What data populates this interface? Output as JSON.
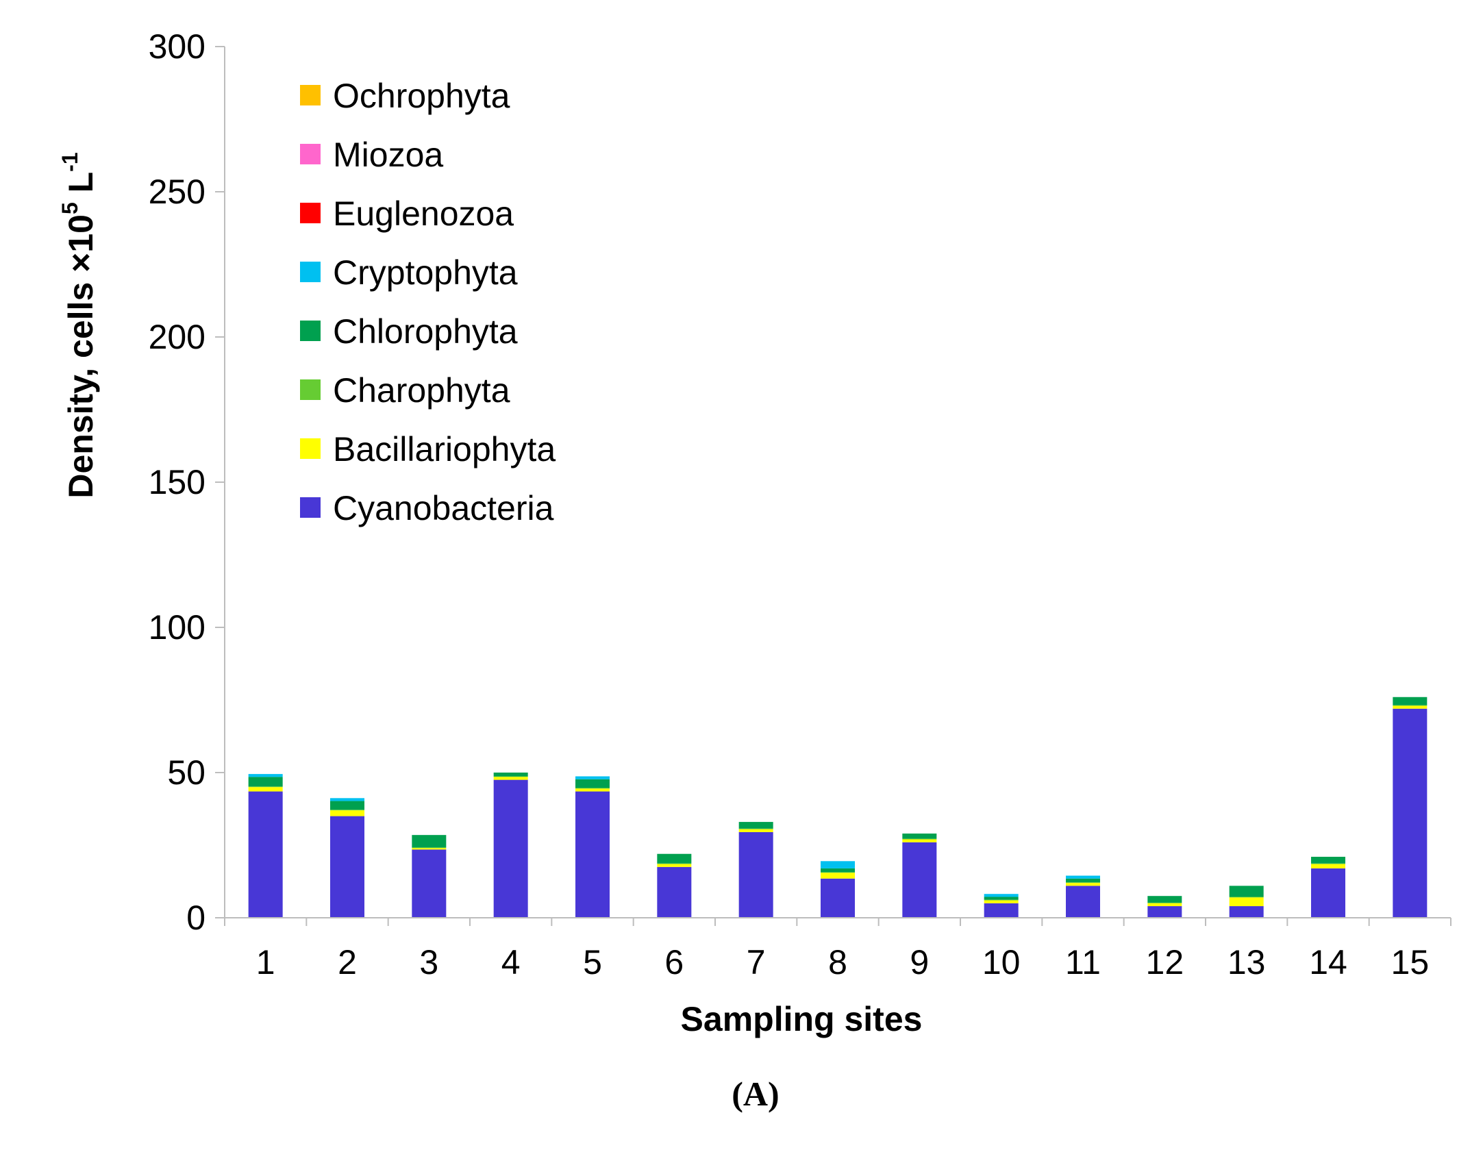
{
  "chart_data": {
    "type": "bar",
    "stacked": true,
    "title": "",
    "xlabel": "Sampling sites",
    "ylabel": "Density, cells ×10⁵ L⁻¹",
    "ylim": [
      0,
      300
    ],
    "yticks": [
      0,
      50,
      100,
      150,
      200,
      250,
      300
    ],
    "categories": [
      "1",
      "2",
      "3",
      "4",
      "5",
      "6",
      "7",
      "8",
      "9",
      "10",
      "11",
      "12",
      "13",
      "14",
      "15"
    ],
    "series": [
      {
        "name": "Cyanobacteria",
        "color": "#4837d6",
        "values": [
          43.5,
          35,
          23.5,
          47.5,
          43.5,
          17.5,
          29.5,
          13.5,
          26,
          5,
          11,
          4,
          4,
          17,
          72
        ]
      },
      {
        "name": "Bacillariophyta",
        "color": "#ffff00",
        "values": [
          1.5,
          2,
          0.5,
          1,
          1,
          1,
          1,
          2,
          1,
          1,
          1,
          1,
          3,
          1.5,
          1
        ]
      },
      {
        "name": "Charophyta",
        "color": "#66cc33",
        "values": [
          0.2,
          0.2,
          0.2,
          0.2,
          0.2,
          0.2,
          0.2,
          0.2,
          0.2,
          0.2,
          0.2,
          0.2,
          0.2,
          0.2,
          0.2
        ]
      },
      {
        "name": "Chlorophyta",
        "color": "#00a04f",
        "values": [
          3.3,
          3,
          4.3,
          1.3,
          3,
          3.3,
          2.3,
          1.3,
          1.8,
          1,
          1.3,
          2.3,
          3.8,
          2.3,
          2.8
        ]
      },
      {
        "name": "Cryptophyta",
        "color": "#00c0f0",
        "values": [
          1,
          1,
          0,
          0,
          1,
          0,
          0,
          2.5,
          0,
          1,
          1,
          0,
          0,
          0,
          0
        ]
      },
      {
        "name": "Euglenozoa",
        "color": "#ff0000",
        "values": [
          0,
          0,
          0,
          0,
          0,
          0,
          0,
          0,
          0,
          0,
          0,
          0,
          0,
          0,
          0
        ]
      },
      {
        "name": "Miozoa",
        "color": "#ff66cc",
        "values": [
          0,
          0,
          0,
          0,
          0,
          0,
          0,
          0,
          0,
          0,
          0,
          0,
          0,
          0,
          0
        ]
      },
      {
        "name": "Ochrophyta",
        "color": "#ffc000",
        "values": [
          0,
          0,
          0,
          0,
          0,
          0,
          0,
          0,
          0,
          0,
          0,
          0,
          0,
          0,
          0
        ]
      }
    ],
    "legend": {
      "placement": "top-left",
      "order": [
        "Ochrophyta",
        "Miozoa",
        "Euglenozoa",
        "Cryptophyta",
        "Chlorophyta",
        "Charophyta",
        "Bacillariophyta",
        "Cyanobacteria"
      ]
    },
    "panel_label": "(A)"
  }
}
